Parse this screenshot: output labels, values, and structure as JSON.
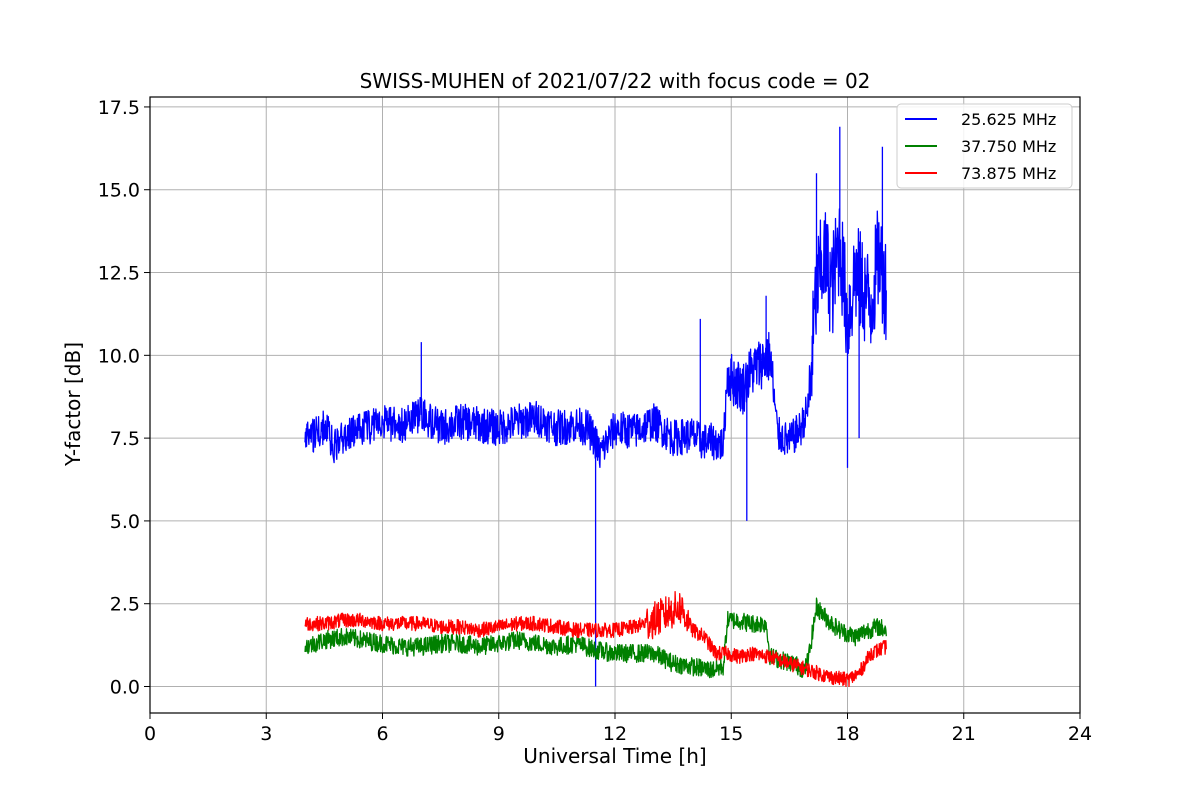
{
  "chart_data": {
    "type": "line",
    "title": "SWISS-MUHEN of 2021/07/22 with focus code = 02",
    "xlabel": "Universal Time [h]",
    "ylabel": "Y-factor [dB]",
    "xlim": [
      0,
      24
    ],
    "ylim": [
      -0.8,
      17.8
    ],
    "xticks": [
      0,
      3,
      6,
      9,
      12,
      15,
      18,
      21,
      24
    ],
    "xtick_labels": [
      "0",
      "3",
      "6",
      "9",
      "12",
      "15",
      "18",
      "21",
      "24"
    ],
    "yticks": [
      0,
      2.5,
      5,
      7.5,
      10,
      12.5,
      15,
      17.5
    ],
    "ytick_labels": [
      "0.0",
      "2.5",
      "5.0",
      "7.5",
      "10.0",
      "12.5",
      "15.0",
      "17.5"
    ],
    "grid": true,
    "legend_position": "top-right",
    "series": [
      {
        "name": "25.625 MHz",
        "color": "#0000ff",
        "x": [
          4.0,
          4.2,
          4.5,
          4.8,
          5.0,
          5.5,
          6.0,
          6.5,
          7.0,
          7.5,
          8.0,
          8.5,
          9.0,
          9.5,
          10.0,
          10.5,
          11.0,
          11.3,
          11.5,
          11.6,
          11.8,
          12.0,
          12.5,
          13.0,
          13.5,
          14.0,
          14.2,
          14.5,
          14.8,
          14.9,
          15.0,
          15.3,
          15.5,
          15.8,
          16.0,
          16.2,
          16.5,
          16.8,
          17.0,
          17.2,
          17.4,
          17.6,
          17.8,
          18.0,
          18.2,
          18.4,
          18.6,
          18.8,
          19.0
        ],
        "values": [
          7.8,
          7.6,
          7.8,
          7.2,
          7.6,
          7.8,
          8.0,
          7.9,
          8.2,
          7.8,
          8.0,
          7.9,
          7.8,
          8.0,
          8.1,
          7.8,
          7.9,
          7.8,
          7.4,
          7.0,
          7.4,
          7.8,
          7.7,
          8.0,
          7.5,
          7.6,
          7.4,
          7.4,
          7.3,
          9.5,
          9.3,
          9.0,
          9.5,
          9.8,
          10.0,
          7.6,
          7.4,
          7.8,
          8.5,
          12.0,
          13.0,
          12.0,
          13.5,
          11.0,
          12.5,
          12.0,
          11.5,
          13.0,
          12.0
        ],
        "spikes": [
          {
            "x": 7.0,
            "y": 10.4
          },
          {
            "x": 11.5,
            "y": 0.0
          },
          {
            "x": 14.2,
            "y": 11.1
          },
          {
            "x": 15.4,
            "y": 5.0
          },
          {
            "x": 15.9,
            "y": 11.8
          },
          {
            "x": 17.2,
            "y": 15.5
          },
          {
            "x": 17.8,
            "y": 16.9
          },
          {
            "x": 18.0,
            "y": 6.6
          },
          {
            "x": 18.3,
            "y": 7.5
          },
          {
            "x": 18.9,
            "y": 16.3
          }
        ]
      },
      {
        "name": "37.750 MHz",
        "color": "#008000",
        "x": [
          4.0,
          4.5,
          5.0,
          5.5,
          6.0,
          6.5,
          7.0,
          7.5,
          8.0,
          8.5,
          9.0,
          9.5,
          10.0,
          10.5,
          11.0,
          11.5,
          12.0,
          12.5,
          13.0,
          13.5,
          14.0,
          14.5,
          14.8,
          14.9,
          15.2,
          15.5,
          15.9,
          16.0,
          16.3,
          16.6,
          16.9,
          17.0,
          17.2,
          17.5,
          17.8,
          18.0,
          18.2,
          18.5,
          18.8,
          19.0
        ],
        "values": [
          1.2,
          1.4,
          1.5,
          1.4,
          1.3,
          1.2,
          1.2,
          1.3,
          1.3,
          1.2,
          1.3,
          1.4,
          1.3,
          1.2,
          1.3,
          1.1,
          1.0,
          1.0,
          1.0,
          0.7,
          0.6,
          0.5,
          0.6,
          2.0,
          2.0,
          1.9,
          1.9,
          0.9,
          0.8,
          0.7,
          0.5,
          0.9,
          2.4,
          2.0,
          1.7,
          1.6,
          1.5,
          1.7,
          1.8,
          1.7
        ]
      },
      {
        "name": "73.875 MHz",
        "color": "#ff0000",
        "x": [
          4.0,
          4.5,
          5.0,
          5.5,
          6.0,
          6.5,
          7.0,
          7.5,
          8.0,
          8.5,
          9.0,
          9.5,
          10.0,
          10.5,
          11.0,
          11.5,
          12.0,
          12.5,
          13.0,
          13.5,
          13.7,
          14.0,
          14.3,
          14.6,
          14.9,
          15.2,
          15.5,
          16.0,
          16.5,
          17.0,
          17.5,
          18.0,
          18.3,
          18.6,
          19.0
        ],
        "values": [
          1.9,
          1.9,
          2.0,
          2.0,
          1.9,
          1.9,
          1.9,
          1.8,
          1.8,
          1.7,
          1.8,
          1.9,
          1.9,
          1.8,
          1.7,
          1.7,
          1.7,
          1.8,
          2.0,
          2.3,
          2.4,
          1.7,
          1.5,
          1.0,
          1.0,
          0.9,
          1.0,
          0.9,
          0.7,
          0.5,
          0.3,
          0.2,
          0.4,
          1.0,
          1.2
        ]
      }
    ]
  }
}
